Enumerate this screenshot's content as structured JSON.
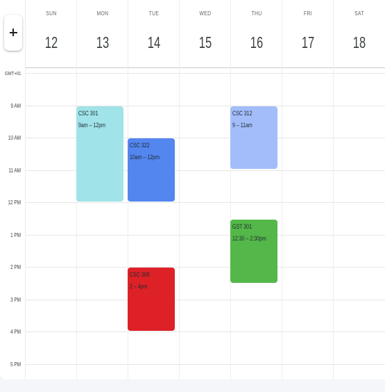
{
  "add_button": {
    "icon": "plus-icon"
  },
  "timezone": "GMT+01",
  "days": [
    {
      "name": "SUN",
      "number": "12"
    },
    {
      "name": "MON",
      "number": "13"
    },
    {
      "name": "TUE",
      "number": "14"
    },
    {
      "name": "WED",
      "number": "15"
    },
    {
      "name": "THU",
      "number": "16"
    },
    {
      "name": "FRI",
      "number": "17"
    },
    {
      "name": "SAT",
      "number": "18"
    }
  ],
  "hours": [
    "9 AM",
    "10 AM",
    "11 AM",
    "12 PM",
    "1 PM",
    "2 PM",
    "3 PM",
    "4 PM",
    "5 PM"
  ],
  "events": [
    {
      "title": "CSC 301",
      "time": "9am – 12pm",
      "color": "#a0e3e8"
    },
    {
      "title": "CSC 322",
      "time": "10am – 12pm",
      "color": "#5486f0"
    },
    {
      "title": "CSC 308",
      "time": "2 – 4pm",
      "color": "#dd2127"
    },
    {
      "title": "CSC 312",
      "time": "9 – 11am",
      "color": "#a2bdfa"
    },
    {
      "title": "GST 301",
      "time": "12:30 – 2:30pm",
      "color": "#54b749"
    }
  ]
}
